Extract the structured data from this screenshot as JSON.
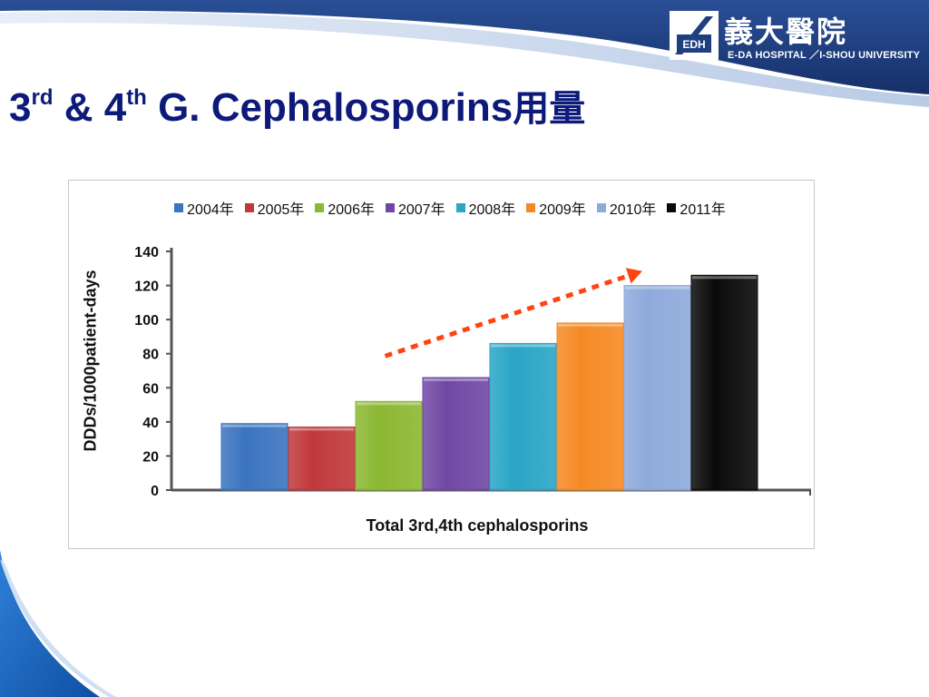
{
  "slide": {
    "title_part1": "3",
    "title_sup1": "rd",
    "title_part2": " & 4",
    "title_sup2": "th",
    "title_part3": " G. Cephalosporins",
    "title_zh": "用量"
  },
  "logo": {
    "mark_text": "EDH",
    "chinese_name": "義大醫院",
    "english_name": "E-DA HOSPITAL ／I-SHOU UNIVERSITY"
  },
  "colors": {
    "title": "#0d1a7a",
    "header_band": "#1f3f7f",
    "accent_blue": "#2e7fd1",
    "trend_arrow": "#ff4411"
  },
  "chart_data": {
    "type": "bar",
    "title": "",
    "xlabel": "Total 3rd,4th cephalosporins",
    "ylabel": "DDDs/1000patient-days",
    "ylim": [
      0,
      140
    ],
    "yticks": [
      0,
      20,
      40,
      60,
      80,
      100,
      120,
      140
    ],
    "categories": [
      "Total 3rd,4th cephalosporins"
    ],
    "grid": false,
    "legend_position": "top",
    "series": [
      {
        "name": "2004年",
        "values": [
          39
        ],
        "color": "#3b74bf"
      },
      {
        "name": "2005年",
        "values": [
          37
        ],
        "color": "#c0393b"
      },
      {
        "name": "2006年",
        "values": [
          52
        ],
        "color": "#8bb832"
      },
      {
        "name": "2007年",
        "values": [
          66
        ],
        "color": "#7048a4"
      },
      {
        "name": "2008年",
        "values": [
          86
        ],
        "color": "#2aa5c6"
      },
      {
        "name": "2009年",
        "values": [
          98
        ],
        "color": "#f58a24"
      },
      {
        "name": "2010年",
        "values": [
          120
        ],
        "color": "#8eaadb"
      },
      {
        "name": "2011年",
        "values": [
          126
        ],
        "color": "#0a0a0a"
      }
    ],
    "annotations": [
      {
        "type": "dotted-arrow",
        "meaning": "increasing trend",
        "from_series": "2006年",
        "to_series": "2010年",
        "color": "#ff4411"
      }
    ]
  }
}
